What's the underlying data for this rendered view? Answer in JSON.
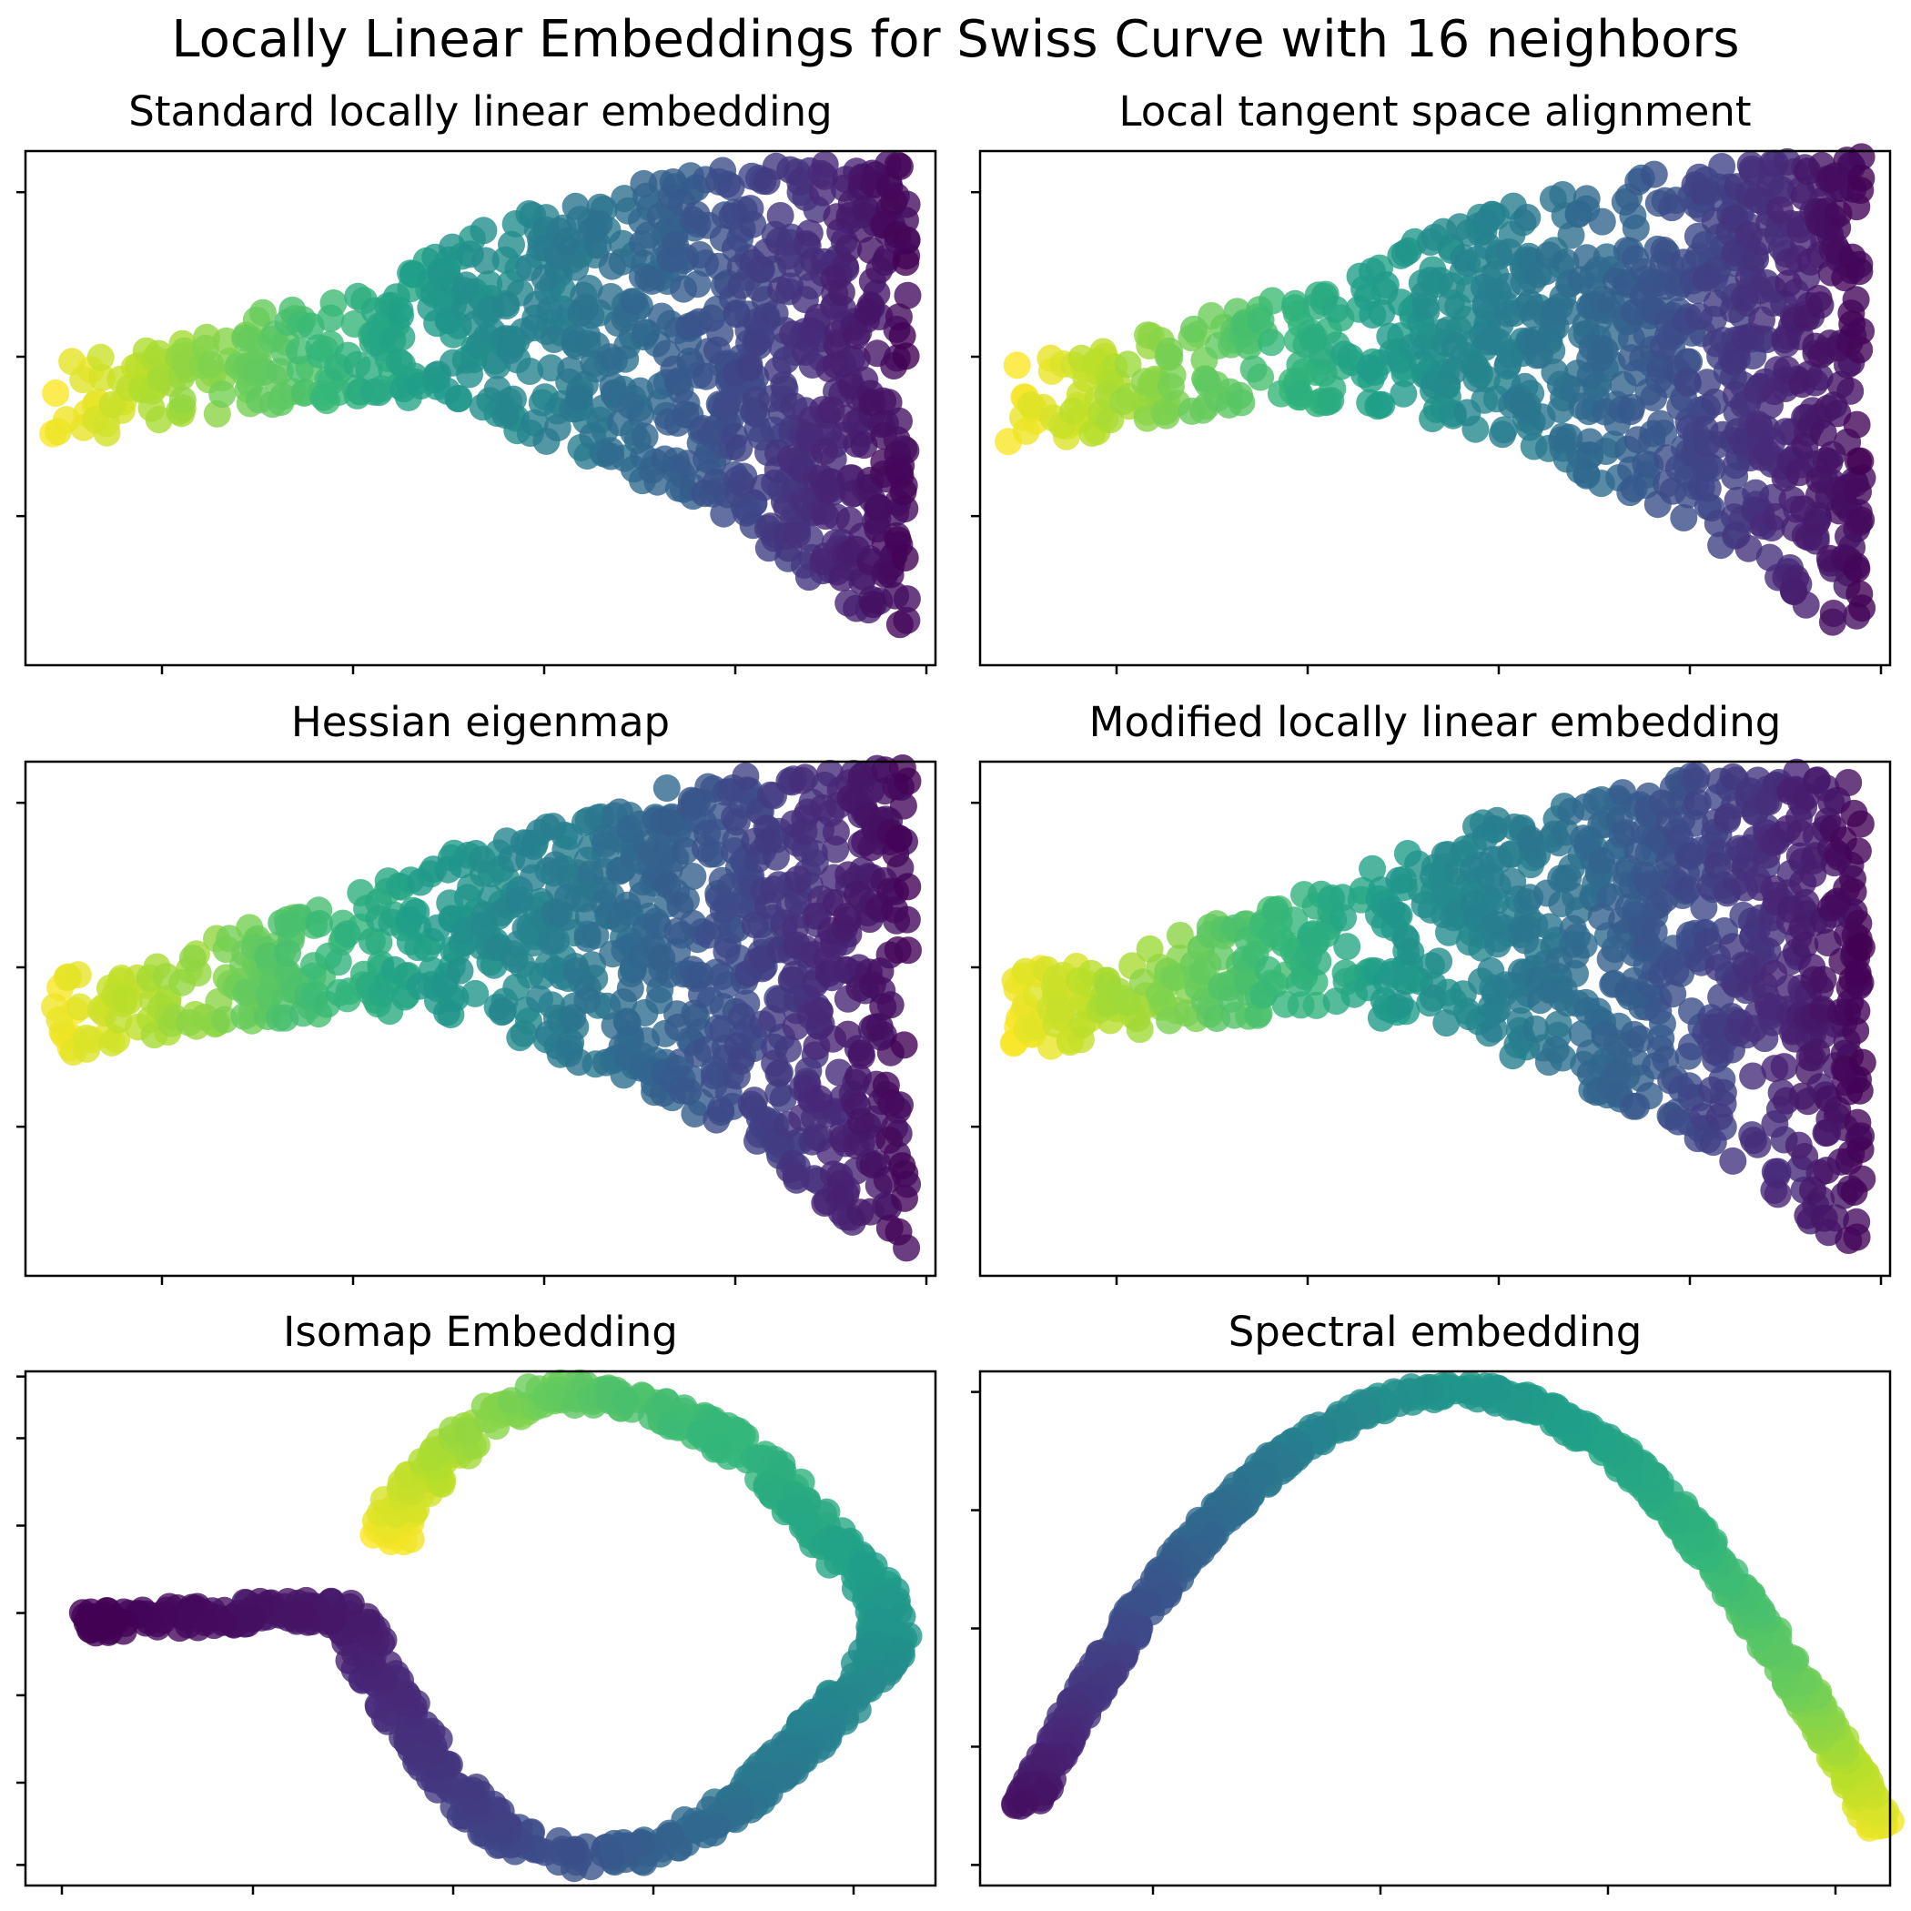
{
  "figure": {
    "title": "Locally Linear Embeddings for Swiss Curve with 16 neighbors"
  },
  "colormap": [
    "#440154",
    "#482878",
    "#3e4989",
    "#31688e",
    "#26828e",
    "#1f9e89",
    "#35b779",
    "#6ece58",
    "#b5de2b",
    "#fde725"
  ],
  "chart_data": [
    {
      "type": "scatter",
      "title": "Standard locally linear embedding",
      "xlabel": "",
      "ylabel": "",
      "grid": false,
      "tick_labels_shown": false,
      "xlim": [
        0,
        1
      ],
      "ylim": [
        0,
        1
      ],
      "xticks": [
        0.15,
        0.36,
        0.57,
        0.78,
        0.99
      ],
      "yticks": [
        0.29,
        0.6,
        0.92
      ],
      "point_color_by": "position along the manifold",
      "shape": "fan",
      "shape_outline": [
        [
          0.03,
          0.59
        ],
        [
          0.12,
          0.61
        ],
        [
          0.25,
          0.68
        ],
        [
          0.4,
          0.77
        ],
        [
          0.55,
          0.88
        ],
        [
          0.75,
          0.97
        ],
        [
          0.97,
          0.99
        ],
        [
          0.97,
          0.05
        ],
        [
          0.88,
          0.13
        ],
        [
          0.78,
          0.28
        ],
        [
          0.66,
          0.37
        ],
        [
          0.55,
          0.45
        ],
        [
          0.45,
          0.5
        ],
        [
          0.35,
          0.51
        ],
        [
          0.22,
          0.49
        ],
        [
          0.12,
          0.45
        ],
        [
          0.03,
          0.43
        ]
      ],
      "color_stops": [
        [
          0.03,
          1.0
        ],
        [
          0.22,
          0.8
        ],
        [
          0.45,
          0.55
        ],
        [
          0.7,
          0.32
        ],
        [
          0.97,
          0.02
        ]
      ]
    },
    {
      "type": "scatter",
      "title": "Local tangent space alignment",
      "xlabel": "",
      "ylabel": "",
      "grid": false,
      "tick_labels_shown": false,
      "xlim": [
        0,
        1
      ],
      "ylim": [
        0,
        1
      ],
      "xticks": [
        0.15,
        0.36,
        0.57,
        0.78,
        0.99
      ],
      "yticks": [
        0.29,
        0.6,
        0.92
      ],
      "point_color_by": "position along the manifold",
      "shape": "fan",
      "shape_outline": [
        [
          0.03,
          0.59
        ],
        [
          0.12,
          0.61
        ],
        [
          0.25,
          0.68
        ],
        [
          0.4,
          0.77
        ],
        [
          0.55,
          0.88
        ],
        [
          0.75,
          0.97
        ],
        [
          0.97,
          0.99
        ],
        [
          0.97,
          0.05
        ],
        [
          0.88,
          0.13
        ],
        [
          0.78,
          0.28
        ],
        [
          0.66,
          0.37
        ],
        [
          0.55,
          0.45
        ],
        [
          0.45,
          0.5
        ],
        [
          0.35,
          0.51
        ],
        [
          0.22,
          0.49
        ],
        [
          0.12,
          0.45
        ],
        [
          0.03,
          0.43
        ]
      ],
      "color_stops": [
        [
          0.03,
          1.0
        ],
        [
          0.22,
          0.8
        ],
        [
          0.45,
          0.55
        ],
        [
          0.7,
          0.32
        ],
        [
          0.97,
          0.02
        ]
      ]
    },
    {
      "type": "scatter",
      "title": "Hessian eigenmap",
      "xlabel": "",
      "ylabel": "",
      "grid": false,
      "tick_labels_shown": false,
      "xlim": [
        0,
        1
      ],
      "ylim": [
        0,
        1
      ],
      "xticks": [
        0.15,
        0.36,
        0.57,
        0.78,
        0.99
      ],
      "yticks": [
        0.29,
        0.6,
        0.92
      ],
      "point_color_by": "position along the manifold",
      "shape": "fan",
      "shape_outline": [
        [
          0.03,
          0.59
        ],
        [
          0.12,
          0.61
        ],
        [
          0.25,
          0.68
        ],
        [
          0.4,
          0.77
        ],
        [
          0.55,
          0.88
        ],
        [
          0.75,
          0.97
        ],
        [
          0.97,
          0.99
        ],
        [
          0.97,
          0.05
        ],
        [
          0.88,
          0.13
        ],
        [
          0.78,
          0.28
        ],
        [
          0.66,
          0.37
        ],
        [
          0.55,
          0.45
        ],
        [
          0.45,
          0.5
        ],
        [
          0.35,
          0.51
        ],
        [
          0.22,
          0.49
        ],
        [
          0.12,
          0.45
        ],
        [
          0.03,
          0.43
        ]
      ],
      "color_stops": [
        [
          0.03,
          1.0
        ],
        [
          0.22,
          0.8
        ],
        [
          0.45,
          0.55
        ],
        [
          0.7,
          0.32
        ],
        [
          0.97,
          0.02
        ]
      ]
    },
    {
      "type": "scatter",
      "title": "Modified locally linear embedding",
      "xlabel": "",
      "ylabel": "",
      "grid": false,
      "tick_labels_shown": false,
      "xlim": [
        0,
        1
      ],
      "ylim": [
        0,
        1
      ],
      "xticks": [
        0.15,
        0.36,
        0.57,
        0.78,
        0.99
      ],
      "yticks": [
        0.29,
        0.6,
        0.92
      ],
      "point_color_by": "position along the manifold",
      "shape": "fan",
      "shape_outline": [
        [
          0.03,
          0.59
        ],
        [
          0.12,
          0.61
        ],
        [
          0.25,
          0.68
        ],
        [
          0.4,
          0.77
        ],
        [
          0.55,
          0.88
        ],
        [
          0.75,
          0.97
        ],
        [
          0.97,
          0.99
        ],
        [
          0.97,
          0.05
        ],
        [
          0.88,
          0.13
        ],
        [
          0.78,
          0.28
        ],
        [
          0.66,
          0.37
        ],
        [
          0.55,
          0.45
        ],
        [
          0.45,
          0.5
        ],
        [
          0.35,
          0.51
        ],
        [
          0.22,
          0.49
        ],
        [
          0.12,
          0.45
        ],
        [
          0.03,
          0.43
        ]
      ],
      "color_stops": [
        [
          0.03,
          1.0
        ],
        [
          0.22,
          0.8
        ],
        [
          0.45,
          0.55
        ],
        [
          0.7,
          0.32
        ],
        [
          0.97,
          0.02
        ]
      ]
    },
    {
      "type": "scatter",
      "title": "Isomap Embedding",
      "xlabel": "",
      "ylabel": "",
      "grid": false,
      "tick_labels_shown": false,
      "xlim": [
        0,
        1
      ],
      "ylim": [
        0,
        1
      ],
      "xticks": [
        0.04,
        0.25,
        0.47,
        0.69,
        0.91
      ],
      "yticks": [
        0.04,
        0.2,
        0.37,
        0.53,
        0.7,
        0.87,
        0.99
      ],
      "point_color_by": "position along the manifold",
      "shape": "path",
      "band_width": 0.045,
      "path": [
        [
          0.06,
          0.51
        ],
        [
          0.15,
          0.52
        ],
        [
          0.25,
          0.53
        ],
        [
          0.34,
          0.535
        ],
        [
          0.37,
          0.5
        ],
        [
          0.38,
          0.42
        ],
        [
          0.42,
          0.32
        ],
        [
          0.47,
          0.2
        ],
        [
          0.52,
          0.1
        ],
        [
          0.6,
          0.055
        ],
        [
          0.68,
          0.065
        ],
        [
          0.76,
          0.13
        ],
        [
          0.83,
          0.23
        ],
        [
          0.9,
          0.36
        ],
        [
          0.95,
          0.47
        ],
        [
          0.94,
          0.56
        ],
        [
          0.89,
          0.66
        ],
        [
          0.83,
          0.79
        ],
        [
          0.75,
          0.89
        ],
        [
          0.66,
          0.95
        ],
        [
          0.57,
          0.96
        ],
        [
          0.5,
          0.9
        ],
        [
          0.45,
          0.81
        ],
        [
          0.41,
          0.74
        ],
        [
          0.4,
          0.66
        ]
      ],
      "color_stops": [
        [
          0.0,
          0.0
        ],
        [
          0.3,
          0.2
        ],
        [
          0.45,
          0.4
        ],
        [
          0.62,
          0.55
        ],
        [
          0.82,
          0.72
        ],
        [
          1.0,
          1.0
        ]
      ]
    },
    {
      "type": "scatter",
      "title": "Spectral embedding",
      "xlabel": "",
      "ylabel": "",
      "grid": false,
      "tick_labels_shown": false,
      "xlim": [
        0,
        1
      ],
      "ylim": [
        0,
        1
      ],
      "xticks": [
        0.19,
        0.44,
        0.69,
        0.94
      ],
      "yticks": [
        0.04,
        0.27,
        0.5,
        0.73,
        0.96
      ],
      "point_color_by": "position along the manifold",
      "shape": "path",
      "band_width": 0.03,
      "path": [
        [
          0.05,
          0.15
        ],
        [
          0.1,
          0.32
        ],
        [
          0.17,
          0.52
        ],
        [
          0.25,
          0.7
        ],
        [
          0.33,
          0.83
        ],
        [
          0.41,
          0.92
        ],
        [
          0.48,
          0.96
        ],
        [
          0.55,
          0.96
        ],
        [
          0.62,
          0.93
        ],
        [
          0.7,
          0.84
        ],
        [
          0.77,
          0.72
        ],
        [
          0.83,
          0.58
        ],
        [
          0.89,
          0.42
        ],
        [
          0.94,
          0.28
        ],
        [
          0.99,
          0.11
        ]
      ],
      "color_stops": [
        [
          0.0,
          0.05
        ],
        [
          0.25,
          0.3
        ],
        [
          0.45,
          0.5
        ],
        [
          0.65,
          0.62
        ],
        [
          0.85,
          0.78
        ],
        [
          1.0,
          0.98
        ]
      ]
    }
  ]
}
